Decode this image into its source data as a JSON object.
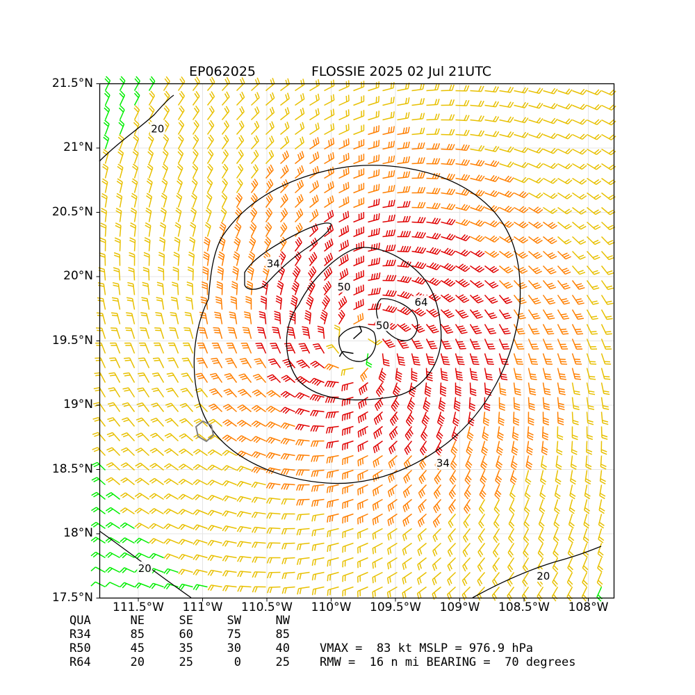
{
  "title": {
    "storm_id": "EP062025",
    "storm_name_time": "FLOSSIE 2025 02 Jul 21UTC"
  },
  "map": {
    "lon_range": [
      -111.8,
      -107.8
    ],
    "lat_range": [
      17.5,
      21.5
    ],
    "lat_ticks": [
      {
        "value": 21.5,
        "label": "21.5°N"
      },
      {
        "value": 21.0,
        "label": "21°N"
      },
      {
        "value": 20.5,
        "label": "20.5°N"
      },
      {
        "value": 20.0,
        "label": "20°N"
      },
      {
        "value": 19.5,
        "label": "19.5°N"
      },
      {
        "value": 19.0,
        "label": "19°N"
      },
      {
        "value": 18.5,
        "label": "18.5°N"
      },
      {
        "value": 18.0,
        "label": "18°N"
      },
      {
        "value": 17.5,
        "label": "17.5°N"
      }
    ],
    "lon_ticks": [
      {
        "value": -111.5,
        "label": "111.5°W"
      },
      {
        "value": -111.0,
        "label": "111°W"
      },
      {
        "value": -110.5,
        "label": "110.5°W"
      },
      {
        "value": -110.0,
        "label": "110°W"
      },
      {
        "value": -109.5,
        "label": "109.5°W"
      },
      {
        "value": -109.0,
        "label": "109°W"
      },
      {
        "value": -108.5,
        "label": "108.5°W"
      },
      {
        "value": -108.0,
        "label": "108°W"
      }
    ],
    "center": {
      "lon": -109.8,
      "lat": 19.45
    },
    "contour_labels": [
      {
        "text": "20",
        "lon": -111.35,
        "lat": 21.15
      },
      {
        "text": "34",
        "lon": -110.45,
        "lat": 20.1
      },
      {
        "text": "50",
        "lon": -109.9,
        "lat": 19.92
      },
      {
        "text": "64",
        "lon": -109.3,
        "lat": 19.8
      },
      {
        "text": "50",
        "lon": -109.6,
        "lat": 19.62
      },
      {
        "text": "34",
        "lon": -109.13,
        "lat": 18.55
      },
      {
        "text": "20",
        "lon": -111.45,
        "lat": 17.73
      },
      {
        "text": "20",
        "lon": -108.35,
        "lat": 17.67
      }
    ],
    "colors": {
      "below34": "#00ee00",
      "r34_50": "#e8c000",
      "r50_64": "#ff7f00",
      "r64": "#e00000",
      "weak": "#000000",
      "contour": "#000000",
      "track": "#808080"
    }
  },
  "quadrant_table": {
    "header": [
      "QUA",
      "NE",
      "SE",
      "SW",
      "NW"
    ],
    "rows": [
      [
        "R34",
        "85",
        "60",
        "75",
        "85"
      ],
      [
        "R50",
        "45",
        "35",
        "30",
        "40"
      ],
      [
        "R64",
        "20",
        "25",
        "0",
        "25"
      ]
    ]
  },
  "stats": {
    "line1": "VMAX =  83 kt MSLP = 976.9 hPa",
    "line2": "RMW =  16 n mi BEARING =  70 degrees"
  }
}
